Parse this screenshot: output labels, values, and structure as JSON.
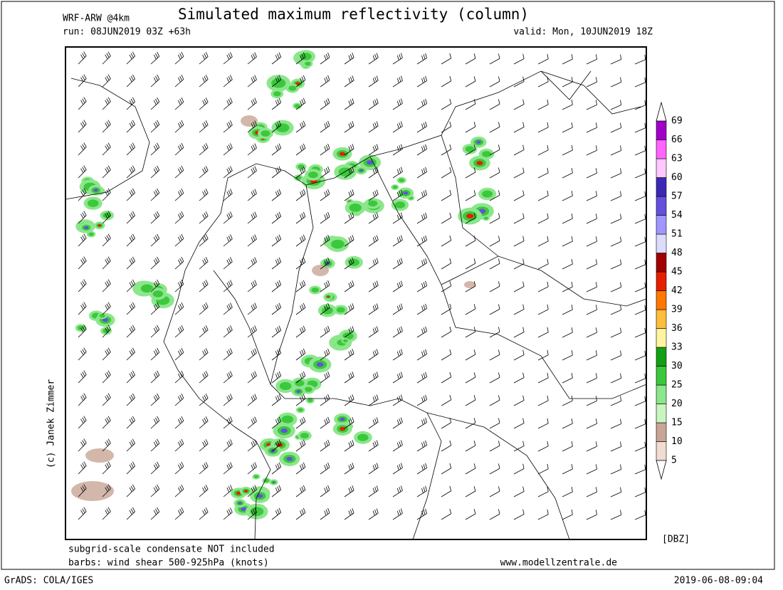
{
  "header": {
    "model": "WRF-ARW @4km",
    "title": "Simulated maximum reflectivity (column)",
    "run": "run: 08JUN2019 03Z +63h",
    "valid": "valid: Mon, 10JUN2019 18Z"
  },
  "map": {
    "credit": "(c) Janek Zimmer"
  },
  "legend": {
    "unit": "[DBZ]",
    "levels": [
      5,
      10,
      15,
      20,
      25,
      30,
      33,
      36,
      39,
      42,
      45,
      48,
      51,
      54,
      57,
      60,
      63,
      66,
      69
    ],
    "colors": [
      "#f0dcd2",
      "#c8a596",
      "#c8f5c0",
      "#8ce68c",
      "#3cc83c",
      "#14a014",
      "#fff5a0",
      "#ffbe3c",
      "#ff7800",
      "#e61e00",
      "#a00000",
      "#dcdcff",
      "#a096ff",
      "#6450dc",
      "#3c28b4",
      "#ffc8ff",
      "#ff64ff",
      "#a000c8"
    ]
  },
  "footer": {
    "note1": "subgrid-scale condensate NOT included",
    "note2": "barbs: wind shear 500-925hPa (knots)",
    "website": "www.modellzentrale.de",
    "grads": "GrADS: COLA/IGES",
    "timestamp": "2019-06-08-09:04"
  }
}
